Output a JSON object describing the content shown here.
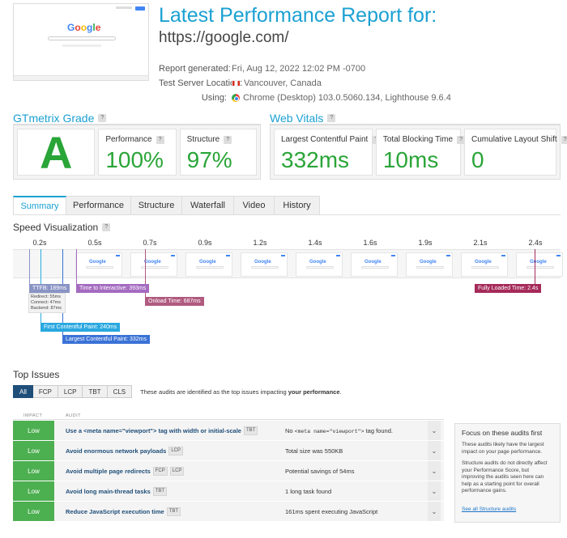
{
  "header": {
    "title": "Latest Performance Report for:",
    "url": "https://google.com/",
    "thumbnail_logo": "Google",
    "meta": [
      {
        "label": "Report generated:",
        "value": "Fri, Aug 12, 2022 12:02 PM -0700",
        "icon": ""
      },
      {
        "label": "Test Server Location:",
        "value": "Vancouver, Canada",
        "icon": "canada-flag-icon"
      },
      {
        "label": "Using:",
        "value": "Chrome (Desktop) 103.0.5060.134, Lighthouse 9.6.4",
        "icon": "chrome-icon"
      }
    ]
  },
  "grade": {
    "heading": "GTmetrix Grade",
    "letter": "A",
    "performance_label": "Performance",
    "performance_value": "100%",
    "structure_label": "Structure",
    "structure_value": "97%"
  },
  "vitals": {
    "heading": "Web Vitals",
    "lcp_label": "Largest Contentful Paint",
    "lcp_value": "332ms",
    "tbt_label": "Total Blocking Time",
    "tbt_value": "10ms",
    "cls_label": "Cumulative Layout Shift",
    "cls_value": "0"
  },
  "tabs": [
    "Summary",
    "Performance",
    "Structure",
    "Waterfall",
    "Video",
    "History"
  ],
  "speed": {
    "heading": "Speed Visualization",
    "times": [
      "0.2s",
      "0.5s",
      "0.7s",
      "0.9s",
      "1.2s",
      "1.4s",
      "1.6s",
      "1.9s",
      "2.1s",
      "2.4s"
    ],
    "frame_logo": "Google",
    "markers": {
      "ttfb": "TTFB: 189ms",
      "tti": "Time to Interactive: 393ms",
      "onload": "Onload Time: 687ms",
      "fully_loaded": "Fully Loaded Time: 2.4s",
      "fcp": "First Contentful Paint: 240ms",
      "lcp": "Largest Contentful Paint: 332ms"
    },
    "ttfb_detail": [
      "Redirect: 55ms",
      "Connect: 47ms",
      "Backend: 87ms"
    ]
  },
  "top_issues": {
    "heading": "Top Issues",
    "filters": [
      "All",
      "FCP",
      "LCP",
      "TBT",
      "CLS"
    ],
    "note_prefix": "These audits are identified as the top issues impacting ",
    "note_bold": "your performance",
    "note_suffix": ".",
    "col_impact": "IMPACT",
    "col_audit": "AUDIT",
    "rows": [
      {
        "impact": "Low",
        "audit": "Use a <meta name=\"viewport\"> tag with width or initial-scale",
        "tags": [
          "TBT"
        ],
        "result_pre": "No ",
        "result_code": "<meta name=\"viewport\">",
        "result_post": " tag found."
      },
      {
        "impact": "Low",
        "audit": "Avoid enormous network payloads",
        "tags": [
          "LCP"
        ],
        "result_pre": "Total size was 550KB",
        "result_code": "",
        "result_post": ""
      },
      {
        "impact": "Low",
        "audit": "Avoid multiple page redirects",
        "tags": [
          "FCP",
          "LCP"
        ],
        "result_pre": "Potential savings of 54ms",
        "result_code": "",
        "result_post": ""
      },
      {
        "impact": "Low",
        "audit": "Avoid long main-thread tasks",
        "tags": [
          "TBT"
        ],
        "result_pre": "1 long task found",
        "result_code": "",
        "result_post": ""
      },
      {
        "impact": "Low",
        "audit": "Reduce JavaScript execution time",
        "tags": [
          "TBT"
        ],
        "result_pre": "161ms spent executing JavaScript",
        "result_code": "",
        "result_post": ""
      }
    ],
    "focus": {
      "title": "Focus on these audits first",
      "p1": "These audits likely have the largest impact on your page performance.",
      "p2": "Structure audits do not directly affect your Performance Score, but improving the audits seen here can help as a starting point for overall performance gains.",
      "link": "See all Structure audits"
    }
  },
  "colors": {
    "accent": "#1ba1d2",
    "grade_green": "#2aa538",
    "low_impact": "#4caf50",
    "ttfb": "#8a94c4",
    "tti": "#a46bc0",
    "onload": "#b05a7f",
    "fully_loaded": "#a52a5a",
    "fcp": "#29a8e0",
    "lcp": "#3a72d6"
  }
}
